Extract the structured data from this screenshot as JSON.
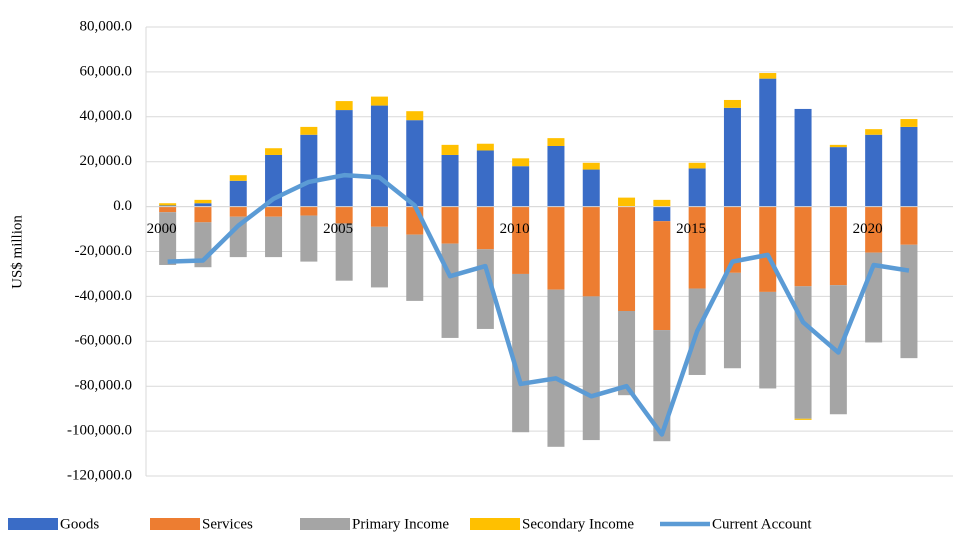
{
  "chart_data": {
    "type": "bar",
    "y_label": "US$ million",
    "categories": [
      "2000",
      null,
      null,
      null,
      null,
      "2005",
      null,
      null,
      null,
      null,
      "2010",
      null,
      null,
      null,
      null,
      "2015",
      null,
      null,
      null,
      null,
      "2020",
      null
    ],
    "series": [
      {
        "name": "Goods",
        "type": "bar",
        "color": "#3a6cc6",
        "values": [
          500,
          1500,
          11500,
          23000,
          32000,
          43000,
          45000,
          38500,
          23000,
          25000,
          18000,
          27000,
          16500,
          0,
          -6500,
          17000,
          44000,
          57000,
          43500,
          26500,
          32000,
          35500
        ]
      },
      {
        "name": "Services",
        "type": "bar",
        "color": "#ed7d31",
        "values": [
          -2500,
          -7000,
          -4500,
          -4500,
          -4000,
          -7500,
          -9000,
          -12500,
          -16500,
          -19000,
          -30000,
          -37000,
          -40000,
          -46500,
          -48500,
          -36500,
          -29500,
          -38000,
          -35500,
          -35000,
          -20500,
          -17000
        ]
      },
      {
        "name": "Primary Income",
        "type": "bar",
        "color": "#a5a5a5",
        "values": [
          -23500,
          -20000,
          -18000,
          -18000,
          -20500,
          -25500,
          -27000,
          -29500,
          -42000,
          -35500,
          -70500,
          -70000,
          -64000,
          -37500,
          -49500,
          -38500,
          -42500,
          -43000,
          -59000,
          -57500,
          -40000,
          -50500
        ]
      },
      {
        "name": "Secondary Income",
        "type": "bar",
        "color": "#ffc000",
        "values": [
          1000,
          1500,
          2500,
          3000,
          3500,
          4000,
          4000,
          4000,
          4500,
          3000,
          3500,
          3500,
          3000,
          4000,
          3000,
          2500,
          3500,
          2500,
          -500,
          1000,
          2500,
          3500
        ]
      },
      {
        "name": "Current Account",
        "type": "line",
        "color": "#5b9bd5",
        "values": [
          -24500,
          -24000,
          -8500,
          3500,
          11000,
          14000,
          13000,
          500,
          -31000,
          -26500,
          -79000,
          -76500,
          -84500,
          -80000,
          -101500,
          -55500,
          -24500,
          -21500,
          -51500,
          -65000,
          -26000,
          -28500
        ]
      }
    ],
    "ylim": [
      -120000,
      80000
    ],
    "yticks": [
      {
        "value": -120000,
        "label": "-120,000.0"
      },
      {
        "value": -100000,
        "label": "-100,000.0"
      },
      {
        "value": -80000,
        "label": "-80,000.0"
      },
      {
        "value": -60000,
        "label": "-60,000.0"
      },
      {
        "value": -40000,
        "label": "-40,000.0"
      },
      {
        "value": -20000,
        "label": "-20,000.0"
      },
      {
        "value": 0,
        "label": "0.0"
      },
      {
        "value": 20000,
        "label": "20,000.0"
      },
      {
        "value": 40000,
        "label": "40,000.0"
      },
      {
        "value": 60000,
        "label": "60,000.0"
      },
      {
        "value": 80000,
        "label": "80,000.0"
      }
    ],
    "grid": true
  }
}
